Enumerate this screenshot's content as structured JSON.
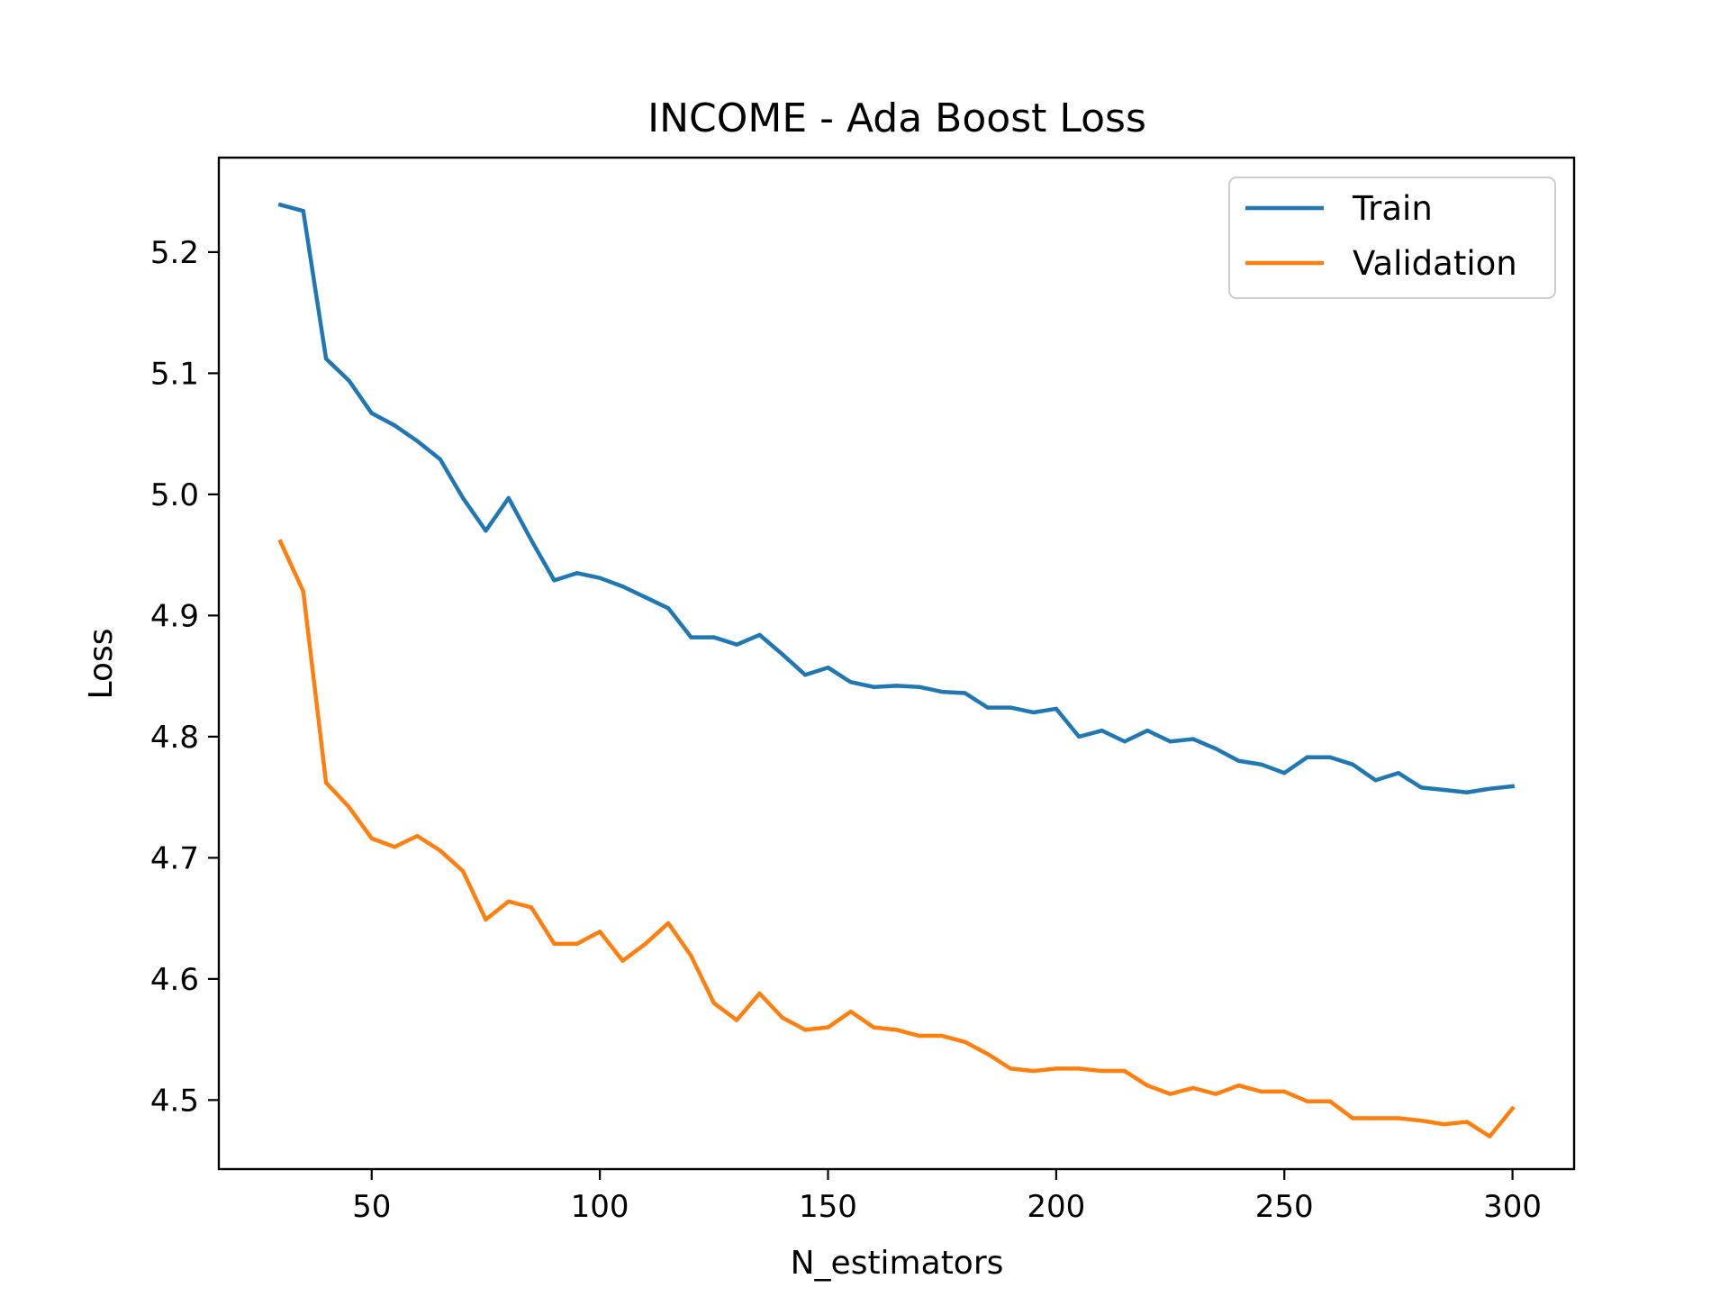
{
  "chart_data": {
    "type": "line",
    "title": "INCOME - Ada Boost Loss",
    "xlabel": "N_estimators",
    "ylabel": "Loss",
    "xlim": [
      16.5,
      313.5
    ],
    "ylim": [
      4.443,
      5.278
    ],
    "xticks": [
      50,
      100,
      150,
      200,
      250,
      300
    ],
    "yticks": [
      4.5,
      4.6,
      4.7,
      4.8,
      4.9,
      5.0,
      5.1,
      5.2
    ],
    "xtick_labels": [
      "50",
      "100",
      "150",
      "200",
      "250",
      "300"
    ],
    "ytick_labels": [
      "4.5",
      "4.6",
      "4.7",
      "4.8",
      "4.9",
      "5.0",
      "5.1",
      "5.2"
    ],
    "grid": false,
    "legend_position": "top-right",
    "x": [
      30,
      35,
      40,
      45,
      50,
      55,
      60,
      65,
      70,
      75,
      80,
      85,
      90,
      95,
      100,
      105,
      110,
      115,
      120,
      125,
      130,
      135,
      140,
      145,
      150,
      155,
      160,
      165,
      170,
      175,
      180,
      185,
      190,
      195,
      200,
      205,
      210,
      215,
      220,
      225,
      230,
      235,
      240,
      245,
      250,
      255,
      260,
      265,
      270,
      275,
      280,
      285,
      290,
      295,
      300
    ],
    "series": [
      {
        "name": "Train",
        "color": "#1f77b4",
        "values": [
          5.239,
          5.234,
          5.112,
          5.094,
          5.067,
          5.057,
          5.044,
          5.029,
          4.997,
          4.97,
          4.997,
          4.962,
          4.929,
          4.935,
          4.931,
          4.924,
          4.915,
          4.906,
          4.882,
          4.882,
          4.876,
          4.884,
          4.868,
          4.851,
          4.857,
          4.845,
          4.841,
          4.842,
          4.841,
          4.837,
          4.836,
          4.824,
          4.824,
          4.82,
          4.823,
          4.8,
          4.805,
          4.796,
          4.805,
          4.796,
          4.798,
          4.79,
          4.78,
          4.777,
          4.77,
          4.783,
          4.783,
          4.777,
          4.764,
          4.77,
          4.758,
          4.756,
          4.754,
          4.757,
          4.759
        ]
      },
      {
        "name": "Validation",
        "color": "#ff7f0e",
        "values": [
          4.961,
          4.92,
          4.762,
          4.742,
          4.716,
          4.709,
          4.718,
          4.706,
          4.689,
          4.649,
          4.664,
          4.659,
          4.629,
          4.629,
          4.639,
          4.615,
          4.629,
          4.646,
          4.619,
          4.58,
          4.566,
          4.588,
          4.568,
          4.558,
          4.56,
          4.573,
          4.56,
          4.558,
          4.553,
          4.553,
          4.548,
          4.538,
          4.526,
          4.524,
          4.526,
          4.526,
          4.524,
          4.524,
          4.512,
          4.505,
          4.51,
          4.505,
          4.512,
          4.507,
          4.507,
          4.499,
          4.499,
          4.485,
          4.485,
          4.485,
          4.483,
          4.48,
          4.482,
          4.47,
          4.493
        ]
      }
    ]
  }
}
